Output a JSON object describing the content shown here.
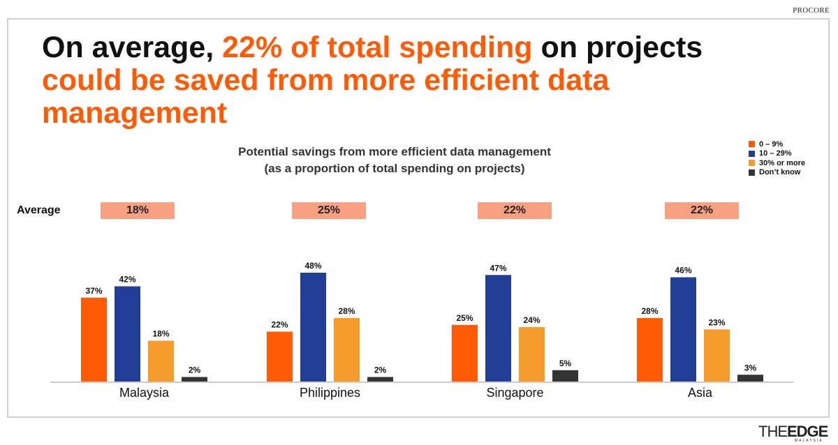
{
  "brand_top": "PROCORE",
  "headline": {
    "part1": "On average, ",
    "part2": "22% of total spending",
    "part3": " on projects",
    "part4": "could be saved from more efficient data management"
  },
  "average_label": "Average",
  "watermark": {
    "the": "THE",
    "edge": "EDGE",
    "sub": "MALAYSIA"
  },
  "colors": {
    "orange": "#ff5a05",
    "navy": "#233e96",
    "light_orange": "#f59c2c",
    "dark": "#333333",
    "avg_box": "#f8a082"
  },
  "chart_data": {
    "type": "bar",
    "title": "Potential savings from more efficient data management",
    "subtitle": "(as a proportion of total spending on projects)",
    "categories": [
      "Malaysia",
      "Philippines",
      "Singapore",
      "Asia"
    ],
    "averages": [
      "18%",
      "25%",
      "22%",
      "22%"
    ],
    "series": [
      {
        "name": "0 – 9%",
        "color": "#ff5a05",
        "values": [
          37,
          22,
          25,
          28
        ]
      },
      {
        "name": "10 – 29%",
        "color": "#233e96",
        "values": [
          42,
          48,
          47,
          46
        ]
      },
      {
        "name": "30% or more",
        "color": "#f59c2c",
        "values": [
          18,
          28,
          24,
          23
        ]
      },
      {
        "name": "Don’t know",
        "color": "#333333",
        "values": [
          2,
          2,
          5,
          3
        ]
      }
    ],
    "unit": "%",
    "ylim": [
      0,
      50
    ]
  }
}
